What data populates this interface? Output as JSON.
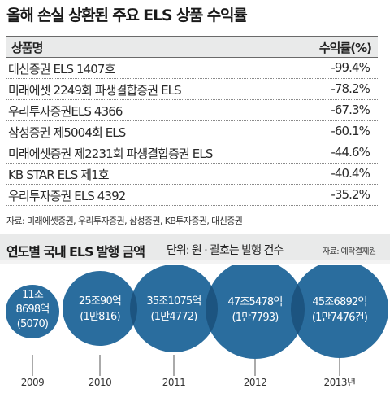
{
  "title": "올해 손실 상환된 주요 ELS 상품 수익률",
  "table": {
    "headers": {
      "name": "상품명",
      "rate": "수익률(%)"
    },
    "rows": [
      {
        "name": "대신증권 ELS 1407호",
        "rate": "-99.4%"
      },
      {
        "name": "미래에셋 2249회 파생결합증권 ELS",
        "rate": "-78.2%"
      },
      {
        "name": "우리투자증권ELS 4366",
        "rate": "-67.3%"
      },
      {
        "name": "삼성증권 제5004회 ELS",
        "rate": "-60.1%"
      },
      {
        "name": "미래에셋증권 제2231회 파생결합증권 ELS",
        "rate": "-44.6%"
      },
      {
        "name": "KB STAR ELS 제1호",
        "rate": "-40.4%"
      },
      {
        "name": "우리투자증권 ELS 4392",
        "rate": "-35.2%"
      }
    ],
    "source": "자료: 미래에셋증권, 우리투자증권, 삼성증권, KB투자증권, 대신증권"
  },
  "issuance": {
    "title": "연도별 국내 ELS 발행 금액",
    "unit": "단위: 원 · 괄호는 발행 건수",
    "source": "자료: 예탁결제원"
  },
  "colors": {
    "bubble": "#2a6d9e",
    "overlap": "#1c5480",
    "header_bg": "#e9eaea"
  },
  "chart_data": {
    "type": "bubble",
    "title": "연도별 국내 ELS 발행 금액",
    "years": [
      "2009",
      "2010",
      "2011",
      "2012",
      "2013년"
    ],
    "amount_labels": [
      "11조 8698억",
      "25조90억",
      "35조1075억",
      "47조5478억",
      "45조6892억"
    ],
    "count_labels": [
      "(5070)",
      "(1만816)",
      "(1만4772)",
      "(1만7793)",
      "(1만7476건)"
    ],
    "amounts_trillion_won": [
      11.8698,
      25.009,
      35.1075,
      47.5478,
      45.6892
    ],
    "counts": [
      5070,
      10816,
      14772,
      17793,
      17476
    ]
  }
}
